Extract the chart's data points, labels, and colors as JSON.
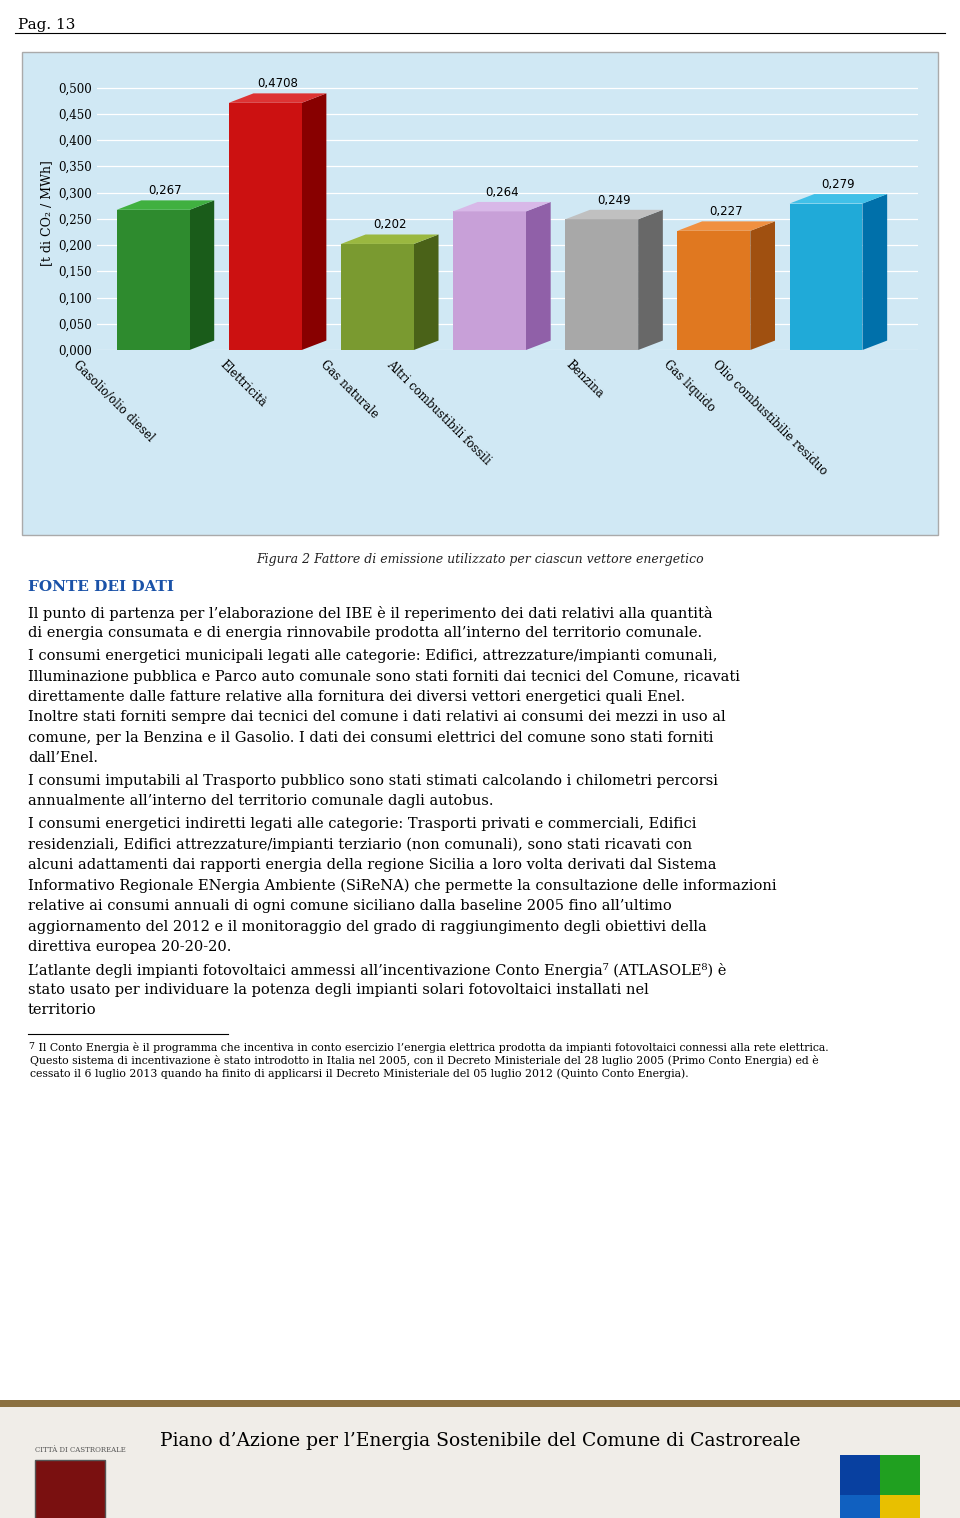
{
  "page_label": "Pag. 13",
  "chart_title": "Figura 2 Fattore di emissione utilizzato per ciascun vettore energetico",
  "ylabel": "[t di CO₂ / MWh]",
  "categories": [
    "Gasolio/olio diesel",
    "Elettricità",
    "Gas naturale",
    "Altri combustibili fossili",
    "Benzina",
    "Gas liquido",
    "Olio combustibilie residuo"
  ],
  "values": [
    0.267,
    0.4708,
    0.202,
    0.264,
    0.249,
    0.227,
    0.279
  ],
  "value_labels": [
    "0,267",
    "0,4708",
    "0,202",
    "0,264",
    "0,249",
    "0,227",
    "0,279"
  ],
  "bar_colors": [
    "#2e8b2e",
    "#cc1111",
    "#7a9a30",
    "#c8a0d8",
    "#a8a8a8",
    "#e07820",
    "#20aad8"
  ],
  "bar_colors_dark": [
    "#1a5c1a",
    "#880000",
    "#4a6218",
    "#9060a8",
    "#686868",
    "#a05010",
    "#0070aa"
  ],
  "bar_colors_top": [
    "#40b040",
    "#dd3333",
    "#9ab840",
    "#d8b8e8",
    "#c0c0c0",
    "#f09040",
    "#40c0e8"
  ],
  "chart_bg": "#d0e8f4",
  "yticks": [
    0.0,
    0.05,
    0.1,
    0.15,
    0.2,
    0.25,
    0.3,
    0.35,
    0.4,
    0.45,
    0.5
  ],
  "ytick_labels": [
    "0,000",
    "0,050",
    "0,100",
    "0,150",
    "0,200",
    "0,250",
    "0,300",
    "0,350",
    "0,400",
    "0,450",
    "0,500"
  ],
  "section_title": "FONTE DEI DATI",
  "section_title_color": "#1a52a8",
  "para1": "Il punto di partenza per l’elaborazione del IBE è il reperimento dei dati relativi alla quantità di energia consumata e di energia rinnovabile prodotta all’interno del territorio comunale.",
  "para2a": "I consumi energetici municipali legati alle categorie: ",
  "para2b": "Edifici, attrezzature/impianti comunali, Illuminazione pubblica e Parco auto comunale",
  "para2c": " sono stati forniti dai tecnici del Comune, ricavati direttamente dalle fatture relative alla fornitura dei diversi vettori energetici quali Enel. Inoltre stati forniti sempre dai tecnici del comune i dati relativi ai consumi dei mezzi in uso al comune, per la Benzina e il Gasolio. I dati dei consumi elettrici del comune sono stati forniti dall’Enel.",
  "para3a": "I consumi imputabili al ",
  "para3b": "Trasporto pubblico",
  "para3c": " sono stati stimati calcolando i chilometri percorsi annualmente all’interno del territorio comunale dagli autobus.",
  "para4a": "I consumi energetici indiretti legati alle categorie: ",
  "para4b": "Trasporti privati e commerciali",
  "para4c": ", ",
  "para4d": "Edifici residenziali",
  "para4e": ", ",
  "para4f": "Edifici attrezzature/impianti terziario (non comunali),",
  "para4g": " sono stati ricavati con alcuni adattamenti dai rapporti energia della regione Sicilia a loro volta derivati dal ",
  "para4h": "Sistema Informativo Regionale ENergia Ambiente (SiReNA)",
  "para4i": " che permette la consultazione delle informazioni relative ai consumi annuali di ogni comune siciliano dalla baseline 2005 fino all’ultimo aggiornamento del 2012 e il monitoraggio del grado di raggiungimento degli obiettivi della direttiva europea 20-20-20.",
  "para5": "L’atlante degli impianti fotovoltaici ammessi all’incentivazione Conto Energia⁷ (ATLASOLE⁸) è stato usato per individuare la potenza degli impianti solari fotovoltaici installati nel territorio",
  "footnote_num": "7",
  "footnote_line1": " Il Conto Energia è il programma che incentiva in conto esercizio l’energia elettrica prodotta da impianti fotovoltaici connessi alla rete elettrica.",
  "footnote_line2": "Questo sistema di incentivazione è stato introdotto in Italia nel 2005, con il Decreto Ministeriale del 28 luglio 2005 (Primo Conto Energia) ed è",
  "footnote_line3": "cessato il 6 luglio 2013 quando ha finito di applicarsi il Decreto Ministeriale del 05 luglio 2012 (Quinto Conto Energia).",
  "footer_text": "Piano d’Azione per l’Energia Sostenibile del Comune di Castroreale",
  "footer_bar_color": "#8b7040",
  "footer_bg": "#f0ede8"
}
